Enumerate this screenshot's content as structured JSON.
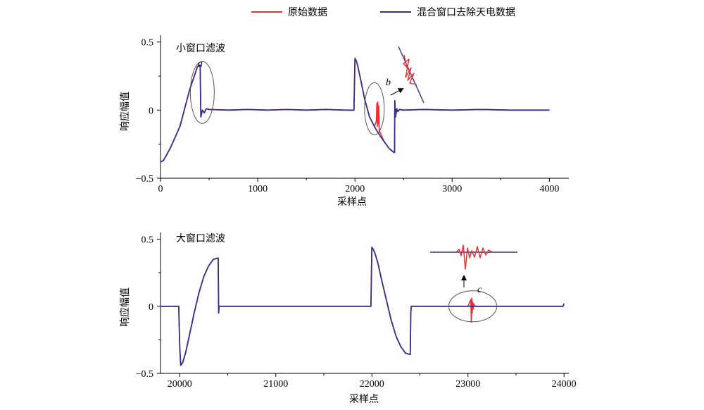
{
  "legend": {
    "items": [
      {
        "label": "原始数据",
        "color": "#e8312f"
      },
      {
        "label": "混合窗口去除天电数据",
        "color": "#3b2d8c"
      }
    ]
  },
  "chart_data": [
    {
      "type": "line",
      "title": "小窗口滤波",
      "xlabel": "采样点",
      "ylabel": "响应幅值",
      "xlim": [
        0,
        4200
      ],
      "ylim": [
        -0.5,
        0.55
      ],
      "xticks": [
        0,
        1000,
        2000,
        3000,
        4000
      ],
      "xtick_labels": [
        "0",
        "1000",
        "2000",
        "3000",
        "4000"
      ],
      "yticks": [
        0.5,
        0,
        -0.5
      ],
      "ytick_labels": [
        "0.5",
        "0",
        "−0.5"
      ],
      "grid": false,
      "legend_position": "top",
      "series": [
        {
          "name": "原始数据",
          "color": "#e8312f",
          "x": [
            0,
            30,
            100,
            200,
            300,
            380,
            400,
            408,
            415,
            430,
            450,
            470,
            500,
            700,
            900,
            1100,
            1300,
            1500,
            1700,
            1900,
            1990,
            2000,
            2015,
            2030,
            2060,
            2100,
            2150,
            2200,
            2220,
            2225,
            2230,
            2235,
            2240,
            2245,
            2250,
            2300,
            2350,
            2400,
            2408,
            2410,
            2418,
            2430,
            2440,
            2460,
            2500,
            2700,
            3000,
            3300,
            3600,
            3900,
            4000
          ],
          "y": [
            -0.38,
            -0.37,
            -0.28,
            -0.12,
            0.15,
            0.32,
            0.33,
            0.33,
            -0.05,
            0.0,
            -0.02,
            0.01,
            0.005,
            0.0,
            0.005,
            0.0,
            0.005,
            0.0,
            0.005,
            0.0,
            0.0,
            0.38,
            0.36,
            0.32,
            0.22,
            0.08,
            -0.05,
            -0.12,
            -0.08,
            0.05,
            -0.12,
            0.06,
            -0.1,
            0.03,
            -0.15,
            -0.23,
            -0.28,
            -0.31,
            -0.31,
            0.07,
            -0.05,
            0.01,
            -0.01,
            0.005,
            0.0,
            0.005,
            0.0,
            0.005,
            0.0,
            0.0,
            0.0
          ]
        },
        {
          "name": "混合窗口去除天电数据",
          "color": "#3b2d8c",
          "x": [
            0,
            30,
            100,
            200,
            300,
            380,
            400,
            408,
            415,
            430,
            450,
            470,
            500,
            700,
            900,
            1100,
            1300,
            1500,
            1700,
            1900,
            1990,
            2000,
            2015,
            2030,
            2060,
            2100,
            2150,
            2200,
            2250,
            2300,
            2350,
            2400,
            2408,
            2410,
            2418,
            2430,
            2440,
            2460,
            2500,
            2700,
            3000,
            3300,
            3600,
            3900,
            4000
          ],
          "y": [
            -0.38,
            -0.37,
            -0.28,
            -0.12,
            0.15,
            0.32,
            0.33,
            0.33,
            -0.05,
            0.0,
            -0.02,
            0.01,
            0.005,
            0.0,
            0.005,
            0.0,
            0.005,
            0.0,
            0.005,
            0.0,
            0.0,
            0.38,
            0.36,
            0.32,
            0.22,
            0.08,
            -0.05,
            -0.12,
            -0.18,
            -0.23,
            -0.28,
            -0.31,
            -0.31,
            0.07,
            -0.05,
            0.01,
            -0.01,
            0.005,
            0.0,
            0.005,
            0.0,
            0.005,
            0.0,
            0.0,
            0.0
          ]
        }
      ],
      "annotations": [
        {
          "letter": "a",
          "x": 430,
          "y": 0.13,
          "rx": 120,
          "ry": 0.24,
          "label_x": 600,
          "label_y": 0.34
        },
        {
          "letter": "b",
          "x": 2200,
          "y": 0.01,
          "rx": 100,
          "ry": 0.2,
          "label_x": 2320,
          "label_y": 0.22
        },
        {
          "letter": "c",
          "x": 23050,
          "y": 0.0,
          "rx": 130,
          "ry": 0.12,
          "label_x": 23170,
          "label_y": 0.14
        }
      ]
    },
    {
      "type": "line",
      "title": "大窗口滤波",
      "xlabel": "采样点",
      "ylabel": "响应幅值",
      "xlim": [
        19800,
        24050
      ],
      "ylim": [
        -0.5,
        0.55
      ],
      "xticks": [
        20000,
        21000,
        22000,
        23000,
        24000
      ],
      "xtick_labels": [
        "20000",
        "21000",
        "22000",
        "23000",
        "24000"
      ],
      "yticks": [
        0.5,
        0,
        -0.5
      ],
      "ytick_labels": [
        "0.5",
        "0",
        "−0.5"
      ],
      "grid": false,
      "series": [
        {
          "name": "原始数据",
          "color": "#e8312f",
          "x": [
            19800,
            19900,
            19990,
            20000,
            20010,
            20030,
            20060,
            20100,
            20150,
            20200,
            20250,
            20300,
            20350,
            20400,
            20405,
            20410,
            20450,
            20600,
            20800,
            21000,
            21200,
            21400,
            21600,
            21800,
            21990,
            22000,
            22010,
            22030,
            22060,
            22100,
            22150,
            22200,
            22250,
            22300,
            22350,
            22400,
            22405,
            22410,
            22450,
            22600,
            22800,
            23000,
            23030,
            23035,
            23040,
            23045,
            23050,
            23055,
            23060,
            23070,
            23100,
            23300,
            23500,
            23700,
            23900,
            23990,
            24000
          ],
          "y": [
            0.0,
            0.0,
            0.0,
            -0.3,
            -0.44,
            -0.42,
            -0.35,
            -0.22,
            -0.05,
            0.1,
            0.22,
            0.3,
            0.35,
            0.36,
            -0.05,
            0.0,
            0.0,
            0.0,
            0.0,
            0.0,
            0.0,
            0.0,
            0.0,
            0.0,
            0.0,
            0.44,
            0.43,
            0.4,
            0.33,
            0.2,
            0.05,
            -0.1,
            -0.22,
            -0.3,
            -0.35,
            -0.36,
            -0.05,
            0.0,
            0.0,
            0.0,
            0.0,
            0.0,
            0.05,
            -0.12,
            0.06,
            -0.05,
            0.03,
            -0.02,
            0.02,
            0.0,
            0.0,
            0.0,
            0.0,
            0.0,
            0.0,
            0.0,
            0.02
          ]
        },
        {
          "name": "混合窗口去除天电数据",
          "color": "#3b2d8c",
          "x": [
            19800,
            19900,
            19990,
            20000,
            20010,
            20030,
            20060,
            20100,
            20150,
            20200,
            20250,
            20300,
            20350,
            20400,
            20405,
            20410,
            20450,
            20600,
            20800,
            21000,
            21200,
            21400,
            21600,
            21800,
            21990,
            22000,
            22010,
            22030,
            22060,
            22100,
            22150,
            22200,
            22250,
            22300,
            22350,
            22400,
            22405,
            22410,
            22450,
            22600,
            22800,
            23000,
            23100,
            23300,
            23500,
            23700,
            23900,
            23990,
            24000
          ],
          "y": [
            0.0,
            0.0,
            0.0,
            -0.3,
            -0.44,
            -0.42,
            -0.35,
            -0.22,
            -0.05,
            0.1,
            0.22,
            0.3,
            0.35,
            0.36,
            -0.05,
            0.0,
            0.0,
            0.0,
            0.0,
            0.0,
            0.0,
            0.0,
            0.0,
            0.0,
            0.0,
            0.44,
            0.43,
            0.4,
            0.33,
            0.2,
            0.05,
            -0.1,
            -0.22,
            -0.3,
            -0.35,
            -0.36,
            -0.05,
            0.0,
            0.0,
            0.0,
            0.0,
            0.0,
            0.0,
            0.0,
            0.0,
            0.0,
            0.0,
            0.0,
            0.02
          ]
        }
      ]
    }
  ]
}
